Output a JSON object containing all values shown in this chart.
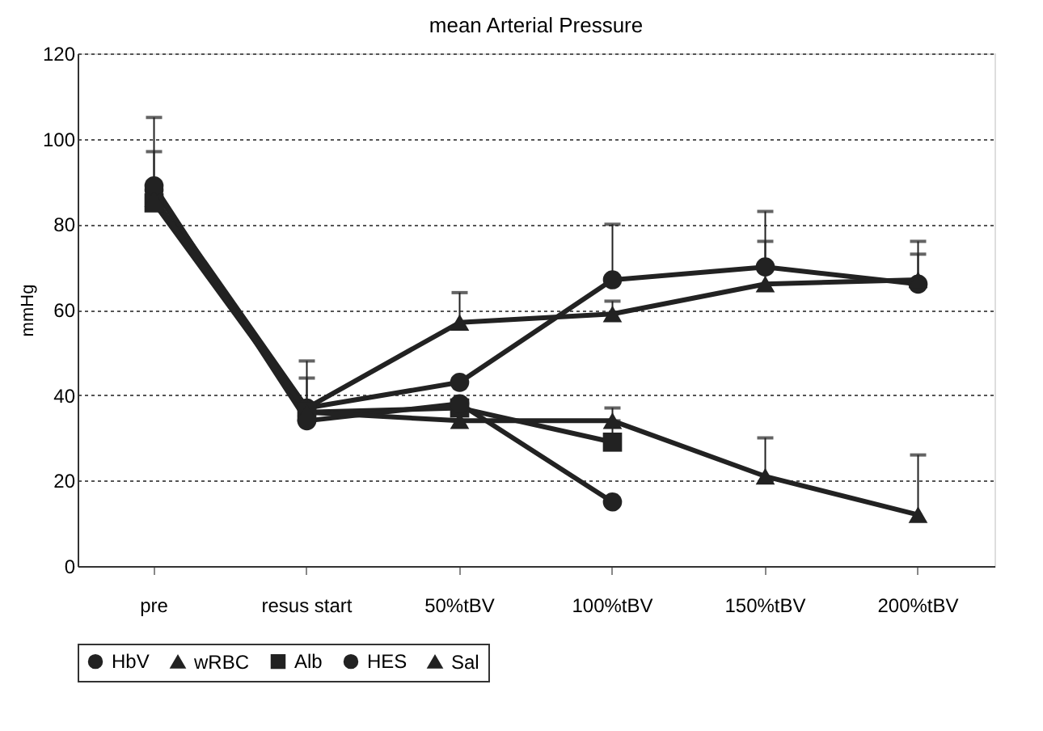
{
  "chart_data": {
    "type": "line",
    "title": "mean Arterial Pressure",
    "ylabel": "mmHg",
    "categories": [
      "pre",
      "resus start",
      "50%tBV",
      "100%tBV",
      "150%tBV",
      "200%tBV"
    ],
    "series": [
      {
        "name": "HbV",
        "color": "#222222",
        "marker": "circle",
        "values": [
          88,
          37,
          43,
          67,
          70,
          66
        ],
        "errors": [
          [
            88,
            97
          ],
          [
            37,
            44
          ],
          null,
          [
            67,
            80
          ],
          [
            70,
            83
          ],
          [
            66,
            73
          ]
        ]
      },
      {
        "name": "wRBC",
        "color": "#222222",
        "marker": "triangle",
        "values": [
          86,
          37,
          57,
          59,
          66,
          67
        ],
        "errors": [
          [
            86,
            105
          ],
          [
            37,
            48
          ],
          [
            57,
            64
          ],
          [
            59,
            62
          ],
          [
            66,
            76
          ],
          [
            67,
            76
          ]
        ]
      },
      {
        "name": "Alb",
        "color": "#222222",
        "marker": "square",
        "values": [
          85,
          36,
          37,
          29,
          null,
          null
        ],
        "errors": [
          null,
          null,
          null,
          [
            29,
            34
          ],
          null,
          null
        ]
      },
      {
        "name": "HES",
        "color": "#222222",
        "marker": "circle",
        "values": [
          89,
          34,
          38,
          15,
          null,
          null
        ],
        "errors": [
          null,
          null,
          null,
          null,
          null,
          null
        ]
      },
      {
        "name": "Sal",
        "color": "#222222",
        "marker": "triangle",
        "values": [
          86,
          36,
          34,
          34,
          21,
          12
        ],
        "errors": [
          null,
          null,
          null,
          [
            34,
            37
          ],
          [
            21,
            30
          ],
          [
            12,
            26
          ]
        ]
      }
    ],
    "ylim": [
      0,
      120
    ],
    "yticks": [
      0,
      20,
      40,
      60,
      80,
      100,
      120
    ],
    "grid": "y",
    "legend": "bottom",
    "line_style": "solid"
  }
}
